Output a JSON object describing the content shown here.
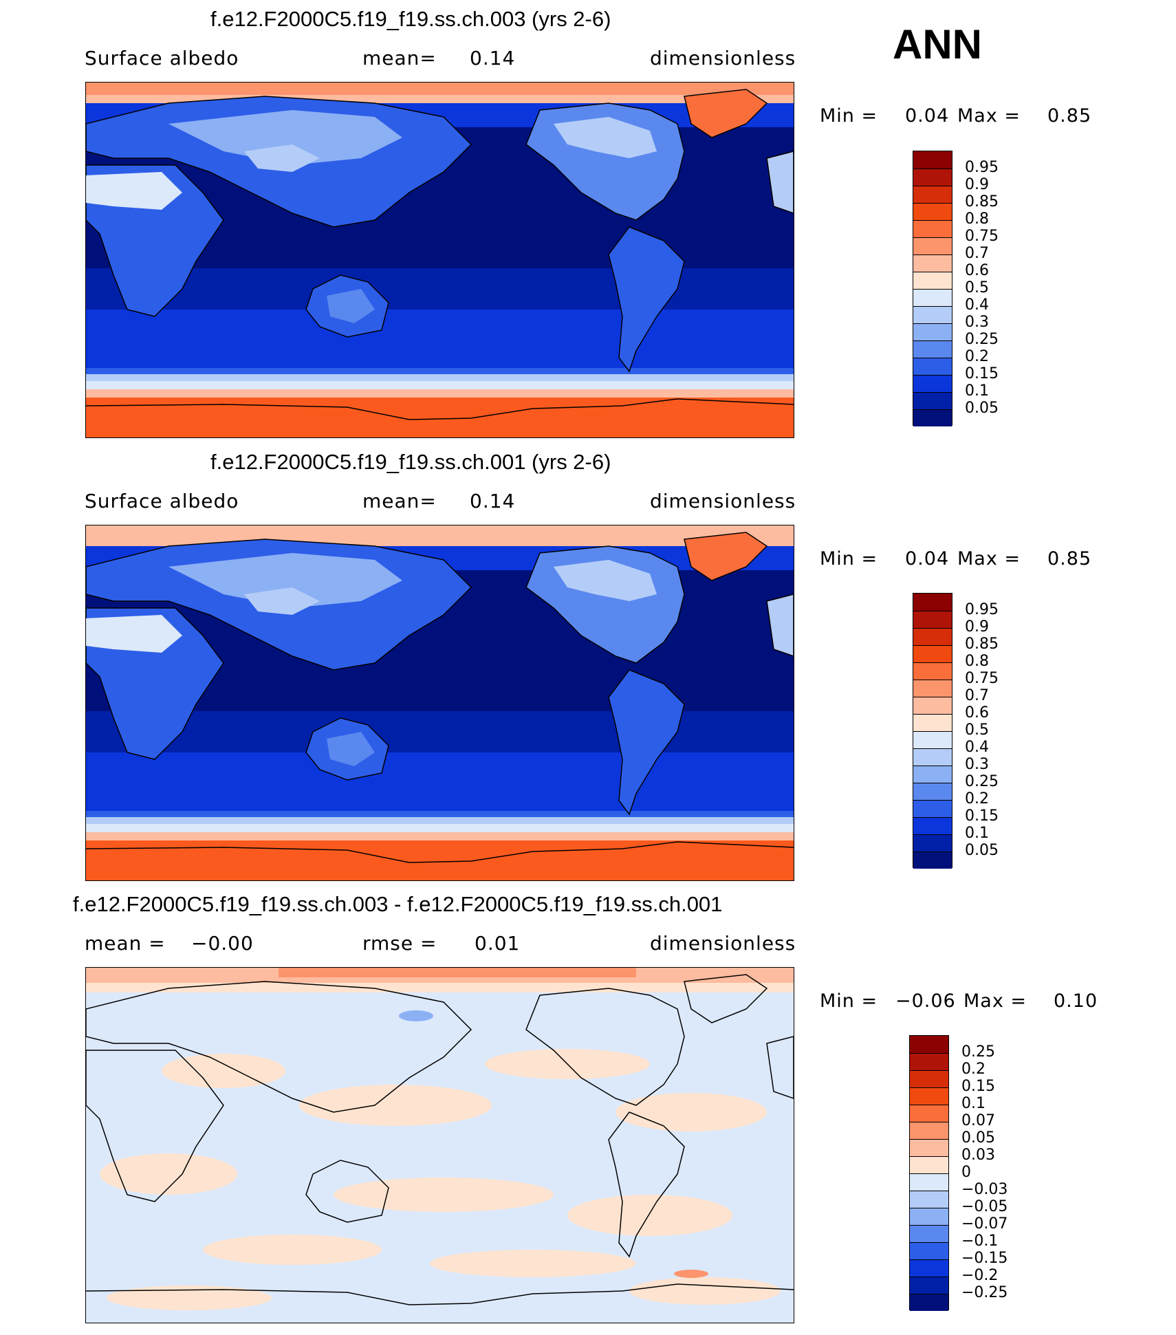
{
  "season": "ANN",
  "panels": [
    {
      "title": "f.e12.F2000C5.f19_f19.ss.ch.003 (yrs 2-6)",
      "variable": "Surface albedo",
      "stat_label": "mean=",
      "stat_value": "0.14",
      "units": "dimensionless",
      "min_label": "Min =",
      "min_value": "0.04",
      "max_label": "Max =",
      "max_value": "0.85",
      "colorbar_levels": [
        "0.95",
        "0.9",
        "0.85",
        "0.8",
        "0.75",
        "0.7",
        "0.6",
        "0.5",
        "0.4",
        "0.3",
        "0.25",
        "0.2",
        "0.15",
        "0.1",
        "0.05"
      ],
      "colorbar_colors": [
        "#8b0000",
        "#b01408",
        "#d62e08",
        "#f04a10",
        "#fa6e3c",
        "#fc946c",
        "#fdbca0",
        "#fee4d0",
        "#dce9fa",
        "#b4cdf8",
        "#8cb0f4",
        "#5a88ee",
        "#2d5ee8",
        "#0a36dc",
        "#0020a8",
        "#00107a"
      ]
    },
    {
      "title": "f.e12.F2000C5.f19_f19.ss.ch.001 (yrs 2-6)",
      "variable": "Surface albedo",
      "stat_label": "mean=",
      "stat_value": "0.14",
      "units": "dimensionless",
      "min_label": "Min =",
      "min_value": "0.04",
      "max_label": "Max =",
      "max_value": "0.85",
      "colorbar_levels": [
        "0.95",
        "0.9",
        "0.85",
        "0.8",
        "0.75",
        "0.7",
        "0.6",
        "0.5",
        "0.4",
        "0.3",
        "0.25",
        "0.2",
        "0.15",
        "0.1",
        "0.05"
      ],
      "colorbar_colors": [
        "#8b0000",
        "#b01408",
        "#d62e08",
        "#f04a10",
        "#fa6e3c",
        "#fc946c",
        "#fdbca0",
        "#fee4d0",
        "#dce9fa",
        "#b4cdf8",
        "#8cb0f4",
        "#5a88ee",
        "#2d5ee8",
        "#0a36dc",
        "#0020a8",
        "#00107a"
      ]
    },
    {
      "title": "f.e12.F2000C5.f19_f19.ss.ch.003 - f.e12.F2000C5.f19_f19.ss.ch.001",
      "variable": "mean =",
      "variable_value": "−0.00",
      "stat_label": "rmse =",
      "stat_value": "0.01",
      "units": "dimensionless",
      "min_label": "Min =",
      "min_value": "−0.06",
      "max_label": "Max =",
      "max_value": "0.10",
      "colorbar_levels": [
        "0.25",
        "0.2",
        "0.15",
        "0.1",
        "0.07",
        "0.05",
        "0.03",
        "0",
        "−0.03",
        "−0.05",
        "−0.07",
        "−0.1",
        "−0.15",
        "−0.2",
        "−0.25"
      ],
      "colorbar_colors": [
        "#8b0000",
        "#b01408",
        "#d62e08",
        "#f04a10",
        "#fa6e3c",
        "#fc946c",
        "#fdbca0",
        "#fee4d0",
        "#dce9fa",
        "#b4cdf8",
        "#8cb0f4",
        "#5a88ee",
        "#2d5ee8",
        "#0a36dc",
        "#0020a8",
        "#00107a"
      ]
    }
  ]
}
